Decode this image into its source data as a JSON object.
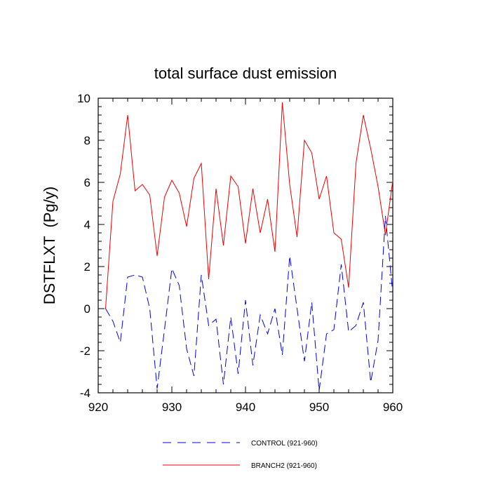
{
  "chart_data": {
    "type": "line",
    "title": "total surface dust emission",
    "xlabel": "",
    "ylabel": "DSTFLXT  (Pg/y)",
    "xlim": [
      920,
      960
    ],
    "ylim": [
      -4,
      10
    ],
    "xticks": [
      920,
      930,
      940,
      950,
      960
    ],
    "yticks": [
      -4,
      -2,
      0,
      2,
      4,
      6,
      8,
      10
    ],
    "grid": false,
    "legend_position": "bottom-center",
    "x": [
      921,
      922,
      923,
      924,
      925,
      926,
      927,
      928,
      929,
      930,
      931,
      932,
      933,
      934,
      935,
      936,
      937,
      938,
      939,
      940,
      941,
      942,
      943,
      944,
      945,
      946,
      947,
      948,
      949,
      950,
      951,
      952,
      953,
      954,
      955,
      956,
      957,
      958,
      959,
      960
    ],
    "series": [
      {
        "name": "CONTROL (921-960)",
        "color": "#0000ee",
        "dash": "dashed",
        "values": [
          0.0,
          -0.6,
          -1.6,
          1.5,
          1.6,
          1.5,
          0.0,
          -3.8,
          -1.0,
          1.9,
          1.1,
          -1.9,
          -3.2,
          1.6,
          -0.8,
          -0.5,
          -3.6,
          -0.4,
          -3.1,
          0.4,
          -2.7,
          -0.3,
          -1.2,
          0.0,
          -2.2,
          2.5,
          0.0,
          -2.5,
          0.3,
          -3.9,
          -1.2,
          -1.0,
          2.1,
          -1.1,
          -0.8,
          0.3,
          -3.5,
          -1.5,
          4.4,
          0.7
        ]
      },
      {
        "name": "BRANCH2 (921-960)",
        "color": "#ee0000",
        "dash": "solid",
        "values": [
          0.0,
          5.1,
          6.4,
          9.2,
          5.6,
          5.9,
          5.4,
          2.5,
          5.3,
          6.1,
          5.5,
          3.9,
          6.2,
          6.9,
          1.4,
          5.7,
          3.0,
          6.3,
          5.8,
          3.1,
          5.7,
          3.6,
          5.2,
          2.7,
          9.8,
          5.9,
          3.4,
          8.0,
          7.4,
          5.2,
          6.3,
          3.6,
          3.3,
          1.0,
          6.9,
          9.2,
          7.6,
          5.8,
          3.5,
          6.1
        ]
      }
    ]
  }
}
